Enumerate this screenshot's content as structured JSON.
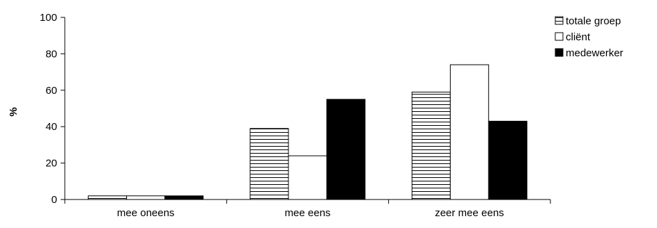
{
  "chart_data": {
    "type": "bar",
    "categories": [
      "mee oneens",
      "mee eens",
      "zeer mee eens"
    ],
    "series": [
      {
        "name": "totale groep",
        "values": [
          2,
          39,
          59
        ],
        "fill": "hatch-horizontal"
      },
      {
        "name": "cliënt",
        "values": [
          2,
          24,
          74
        ],
        "fill": "#ffffff"
      },
      {
        "name": "medewerker",
        "values": [
          2,
          55,
          43
        ],
        "fill": "#000000"
      }
    ],
    "title": "",
    "xlabel": "",
    "ylabel": "%",
    "ylim": [
      0,
      100
    ],
    "yticks": [
      0,
      20,
      40,
      60,
      80,
      100
    ],
    "grid": false,
    "legend_position": "top-right"
  }
}
